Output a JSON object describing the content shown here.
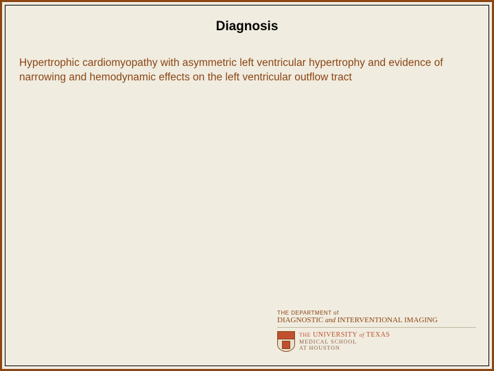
{
  "colors": {
    "background": "#f0ece0",
    "outer_border": "#8b4513",
    "inner_border": "#000000",
    "title_color": "#000000",
    "body_color": "#8b4513",
    "accent_orange": "#c05030",
    "logo_tan": "#8b6040"
  },
  "typography": {
    "title_fontsize": 19,
    "body_fontsize": 15.5,
    "title_weight": "bold"
  },
  "title": "Diagnosis",
  "body": "Hypertrophic cardiomyopathy with asymmetric left ventricular hypertrophy and evidence of narrowing and hemodynamic effects on the left ventricular outflow tract",
  "footer": {
    "dept_label": "THE DEPARTMENT of",
    "dept_name_1": "DIAGNOSTIC",
    "dept_and": "and",
    "dept_name_2": "INTERVENTIONAL IMAGING",
    "university_prefix": "THE",
    "university_name": "UNIVERSITY",
    "university_of": "of",
    "university_state": "TEXAS",
    "school_line": "MEDICAL SCHOOL",
    "location_line": "AT HOUSTON"
  }
}
